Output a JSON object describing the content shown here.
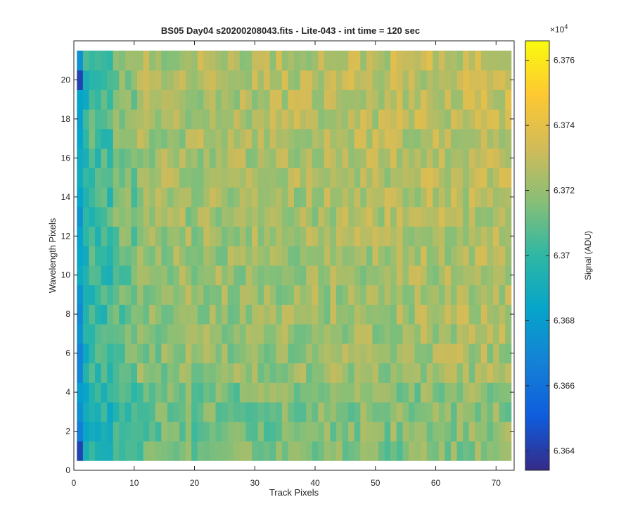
{
  "chart_data": {
    "type": "heatmap",
    "title": "BS05 Day04  s20200208043.fits - Lite-043 - int time = 120 sec",
    "xlabel": "Track Pixels",
    "ylabel": "Wavelength Pixels",
    "xlim": [
      0,
      73
    ],
    "ylim": [
      0,
      22
    ],
    "x_ticks": [
      0,
      10,
      20,
      30,
      40,
      50,
      60,
      70
    ],
    "y_ticks": [
      0,
      2,
      4,
      6,
      8,
      10,
      12,
      14,
      16,
      18,
      20
    ],
    "x_range": [
      1,
      72
    ],
    "y_range": [
      1,
      21
    ],
    "grid": false,
    "colormap": "parula",
    "colorbar": {
      "label": "Signal (ADU)",
      "exponent_label": "×10",
      "exponent": "4",
      "min": 63634,
      "max": 63766,
      "ticks": [
        63640,
        63660,
        63680,
        63700,
        63720,
        63740,
        63760
      ],
      "tick_labels": [
        "6.364",
        "6.366",
        "6.368",
        "6.37",
        "6.372",
        "6.374",
        "6.376"
      ]
    },
    "description": "Signal is lowest at the left edge (x = 1-2, ~6.365e4) and rises toward ~6.373-6.375e4 over the right and upper region; bottom rows slightly lower."
  },
  "colors": {
    "axis": "#262626",
    "background": "#ffffff",
    "parula": [
      "#352a87",
      "#0f5cdd",
      "#1481d6",
      "#06a4ca",
      "#2eb7a4",
      "#87bf77",
      "#d1bb59",
      "#fec832",
      "#f9fb0e"
    ]
  }
}
